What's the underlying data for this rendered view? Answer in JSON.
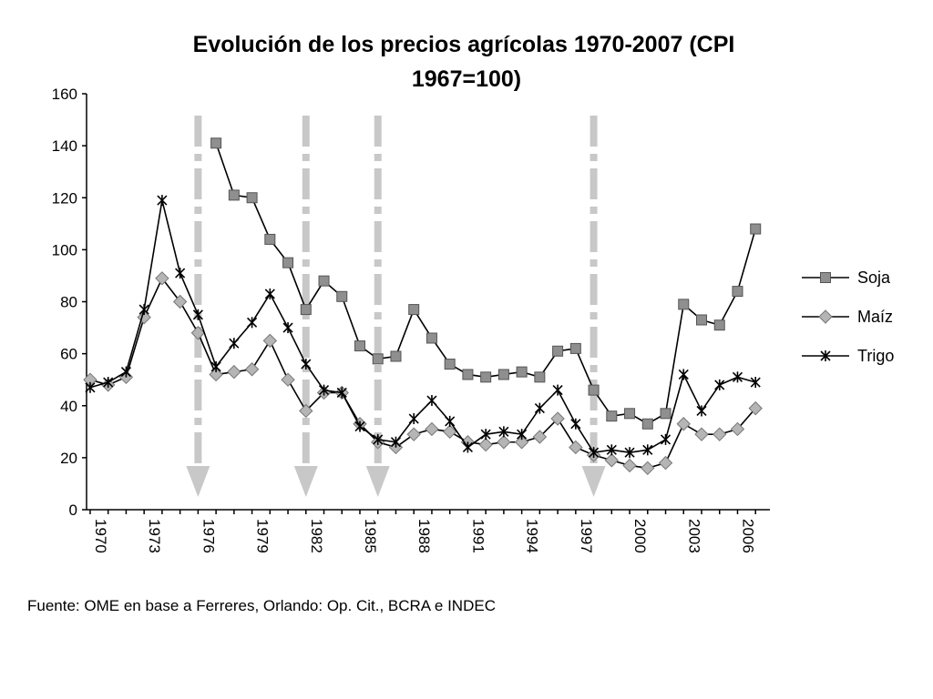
{
  "chart_data": {
    "type": "line",
    "title_lines": [
      "Evolución de los precios agrícolas 1970-2007 (CPI",
      "1967=100)"
    ],
    "xlabel": "",
    "ylabel": "",
    "ylim": [
      0,
      160
    ],
    "yticks": [
      0,
      20,
      40,
      60,
      80,
      100,
      120,
      140,
      160
    ],
    "x": [
      1970,
      1971,
      1972,
      1973,
      1974,
      1975,
      1976,
      1977,
      1978,
      1979,
      1980,
      1981,
      1982,
      1983,
      1984,
      1985,
      1986,
      1987,
      1988,
      1989,
      1990,
      1991,
      1992,
      1993,
      1994,
      1995,
      1996,
      1997,
      1998,
      1999,
      2000,
      2001,
      2002,
      2003,
      2004,
      2005,
      2006,
      2007
    ],
    "xticks": [
      "1970",
      "1973",
      "1976",
      "1979",
      "1982",
      "1985",
      "1988",
      "1991",
      "1994",
      "1997",
      "2000",
      "2003",
      "2006"
    ],
    "xtick_years": [
      1970,
      1973,
      1976,
      1979,
      1982,
      1985,
      1988,
      1991,
      1994,
      1997,
      2000,
      2003,
      2006
    ],
    "grid": false,
    "legend_position": "right",
    "series": [
      {
        "name": "Soja",
        "marker": "square",
        "color": "#8f8f8f",
        "values": [
          null,
          null,
          null,
          null,
          null,
          null,
          null,
          141,
          121,
          120,
          104,
          95,
          77,
          88,
          82,
          63,
          58,
          59,
          77,
          66,
          56,
          52,
          51,
          52,
          53,
          51,
          61,
          62,
          46,
          36,
          37,
          33,
          37,
          79,
          73,
          71,
          84,
          108
        ]
      },
      {
        "name": "Maíz",
        "marker": "diamond",
        "color": "#b5b5b5",
        "values": [
          50,
          48,
          51,
          74,
          89,
          80,
          68,
          52,
          53,
          54,
          65,
          50,
          38,
          45,
          45,
          33,
          26,
          24,
          29,
          31,
          30,
          26,
          25,
          26,
          26,
          28,
          35,
          24,
          21,
          19,
          17,
          16,
          18,
          33,
          29,
          29,
          31,
          39
        ]
      },
      {
        "name": "Trigo",
        "marker": "star",
        "color": "#000000",
        "values": [
          47,
          49,
          53,
          77,
          119,
          91,
          75,
          55,
          64,
          72,
          83,
          70,
          56,
          46,
          45,
          32,
          27,
          26,
          35,
          42,
          34,
          24,
          29,
          30,
          29,
          39,
          46,
          33,
          22,
          23,
          22,
          23,
          27,
          52,
          38,
          48,
          51,
          49
        ]
      }
    ],
    "annotations": [
      {
        "type": "dashed-arrow",
        "year": 1976
      },
      {
        "type": "dashed-arrow",
        "year": 1982
      },
      {
        "type": "dashed-arrow",
        "year": 1986
      },
      {
        "type": "dashed-arrow",
        "year": 1998
      }
    ],
    "arrow_color": "#c8c8c8"
  },
  "source_note": "Fuente: OME en base a Ferreres, Orlando: Op. Cit., BCRA e INDEC"
}
